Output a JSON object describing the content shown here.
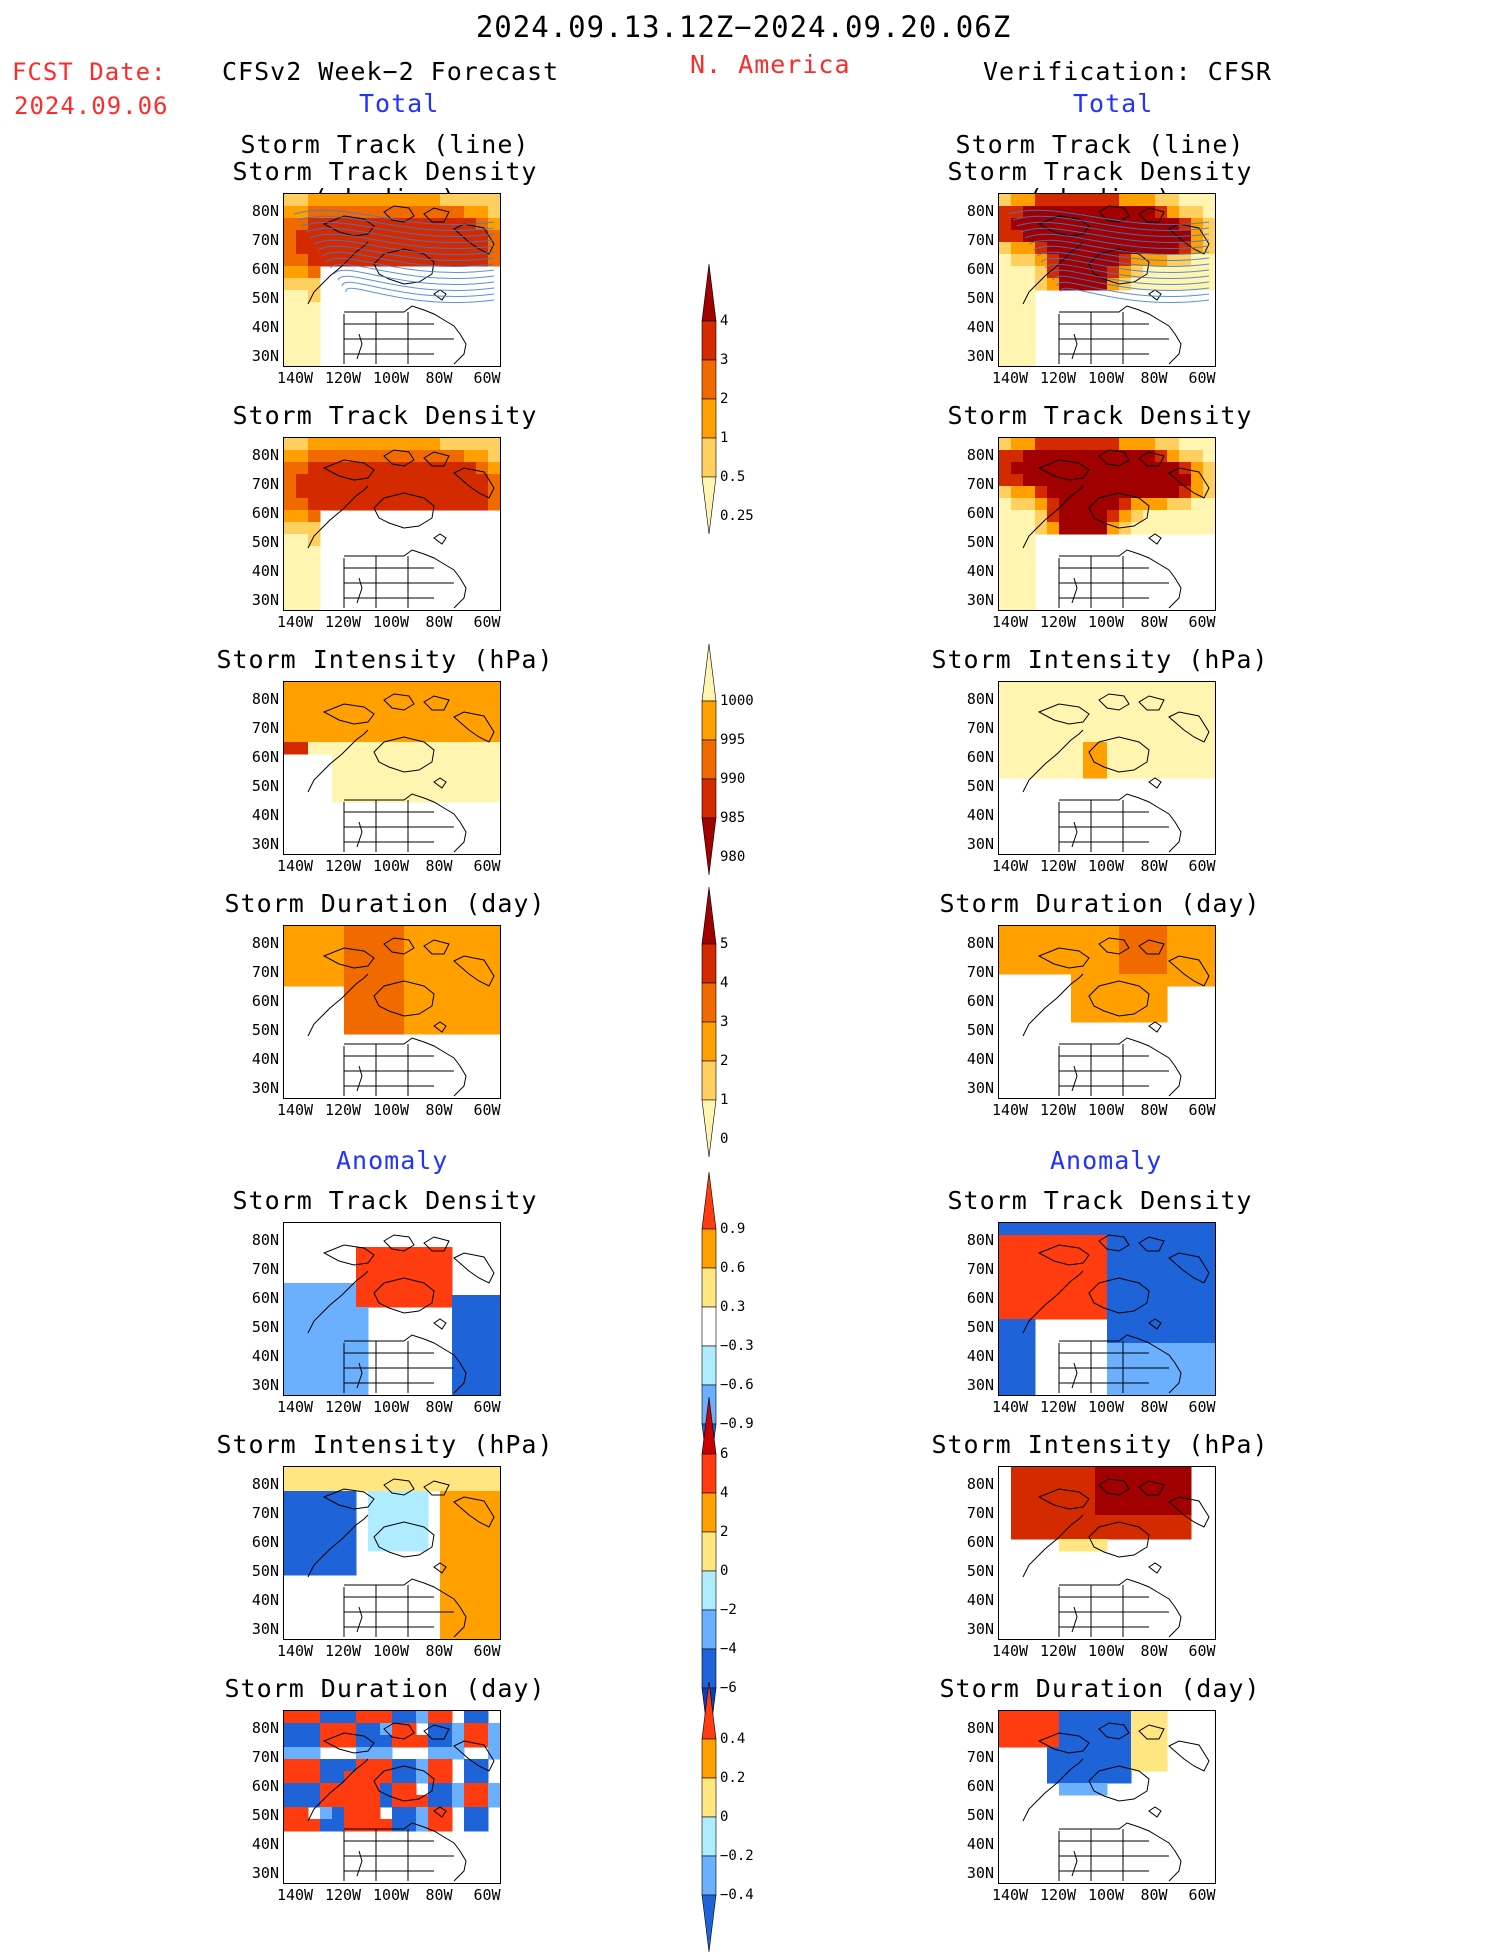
{
  "header": {
    "period": "2024.09.13.12Z−2024.09.20.06Z",
    "region": "N. America",
    "fcst_date_label": "FCST Date:",
    "fcst_date": "2024.09.06",
    "left_title": "CFSv2 Week−2 Forecast",
    "right_title": "Verification: CFSR",
    "total_left": "Total",
    "total_right": "Total",
    "anomaly_left": "Anomaly",
    "anomaly_right": "Anomaly"
  },
  "panel_titles": {
    "track_line": "Storm Track (line)",
    "track_density_shading": "Storm Track Density (shading)",
    "track_density": "Storm Track Density",
    "intensity": "Storm Intensity (hPa)",
    "duration": "Storm Duration (day)"
  },
  "axes": {
    "lat_labels": [
      "80N",
      "70N",
      "60N",
      "50N",
      "40N",
      "30N"
    ],
    "lon_labels": [
      "140W",
      "120W",
      "100W",
      "80W",
      "60W"
    ]
  },
  "colorbars": [
    {
      "name": "total-density",
      "labels": [
        "4",
        "3",
        "2",
        "1",
        "0.5",
        "0.25"
      ],
      "colors": [
        "#a00000",
        "#d42a00",
        "#f06a00",
        "#ffa000",
        "#ffd060",
        "#fff4b0"
      ],
      "direction": "top-high"
    },
    {
      "name": "total-intensity",
      "labels": [
        "1000",
        "995",
        "990",
        "985",
        "980"
      ],
      "colors": [
        "#fff4b0",
        "#ffa000",
        "#f06a00",
        "#d42a00",
        "#a00000"
      ],
      "direction": "top-low"
    },
    {
      "name": "total-duration",
      "labels": [
        "5",
        "4",
        "3",
        "2",
        "1",
        "0"
      ],
      "colors": [
        "#a00000",
        "#d42a00",
        "#f06a00",
        "#ffa000",
        "#ffd060",
        "#fff4b0"
      ],
      "direction": "top-high"
    },
    {
      "name": "anom-density",
      "labels": [
        "0.9",
        "0.6",
        "0.3",
        "−0.3",
        "−0.6",
        "−0.9"
      ],
      "colors": [
        "#ff3b10",
        "#ffa000",
        "#ffe680",
        "#ffffff",
        "#b0ecff",
        "#6ab0ff",
        "#1e64d8"
      ],
      "direction": "diverging"
    },
    {
      "name": "anom-intensity",
      "labels": [
        "6",
        "4",
        "2",
        "0",
        "−2",
        "−4",
        "−6"
      ],
      "colors": [
        "#c80000",
        "#ff3b10",
        "#ffa000",
        "#ffe680",
        "#b0ecff",
        "#6ab0ff",
        "#1e64d8",
        "#0a40c0"
      ],
      "direction": "diverging"
    },
    {
      "name": "anom-duration",
      "labels": [
        "0.4",
        "0.2",
        "0",
        "−0.2",
        "−0.4"
      ],
      "colors": [
        "#ff3b10",
        "#ffa000",
        "#ffe680",
        "#b0ecff",
        "#6ab0ff",
        "#1e64d8"
      ],
      "direction": "diverging"
    }
  ],
  "maps": [
    {
      "name": "fcst-track",
      "palette": [
        "#fff4b0",
        "#ffd060",
        "#ffa000",
        "#f06a00",
        "#d42a00"
      ],
      "field": "fcst_total",
      "tracks": true
    },
    {
      "name": "fcst-density",
      "palette": [
        "#fff4b0",
        "#ffd060",
        "#ffa000",
        "#f06a00",
        "#d42a00"
      ],
      "field": "fcst_total",
      "tracks": false
    },
    {
      "name": "fcst-intensity",
      "palette": [
        "#fff4b0",
        "#ffd060",
        "#ffa000",
        "#f06a00",
        "#d42a00"
      ],
      "field": "fcst_intensity",
      "tracks": false
    },
    {
      "name": "fcst-duration",
      "palette": [
        "#fff4b0",
        "#ffd060",
        "#ffa000",
        "#f06a00",
        "#d42a00"
      ],
      "field": "fcst_duration",
      "tracks": false
    },
    {
      "name": "fcst-anom-density",
      "palette": [
        "#1e64d8",
        "#6ab0ff",
        "#b0ecff",
        "#ffe680",
        "#ffa000",
        "#ff3b10"
      ],
      "field": "fcst_anom_density",
      "tracks": false
    },
    {
      "name": "fcst-anom-intensity",
      "palette": [
        "#1e64d8",
        "#6ab0ff",
        "#b0ecff",
        "#ffe680",
        "#ffa000",
        "#ff3b10"
      ],
      "field": "fcst_anom_intensity",
      "tracks": false
    },
    {
      "name": "fcst-anom-duration",
      "palette": [
        "#1e64d8",
        "#6ab0ff",
        "#b0ecff",
        "#ffe680",
        "#ffa000",
        "#ff3b10"
      ],
      "field": "fcst_anom_duration",
      "tracks": false
    },
    {
      "name": "verif-track",
      "palette": [
        "#fff4b0",
        "#ffd060",
        "#ffa000",
        "#d42a00",
        "#a00000"
      ],
      "field": "verif_total",
      "tracks": true
    },
    {
      "name": "verif-density",
      "palette": [
        "#fff4b0",
        "#ffd060",
        "#ffa000",
        "#d42a00",
        "#a00000"
      ],
      "field": "verif_total",
      "tracks": false
    },
    {
      "name": "verif-intensity",
      "palette": [
        "#fff4b0",
        "#ffd060",
        "#ffa000",
        "#f06a00",
        "#d42a00"
      ],
      "field": "verif_intensity",
      "tracks": false
    },
    {
      "name": "verif-duration",
      "palette": [
        "#fff4b0",
        "#ffd060",
        "#ffa000",
        "#f06a00",
        "#d42a00"
      ],
      "field": "verif_duration",
      "tracks": false
    },
    {
      "name": "verif-anom-density",
      "palette": [
        "#1e64d8",
        "#6ab0ff",
        "#b0ecff",
        "#ffe680",
        "#ffa000",
        "#ff3b10"
      ],
      "field": "verif_anom_density",
      "tracks": false
    },
    {
      "name": "verif-anom-intensity",
      "palette": [
        "#1e64d8",
        "#6ab0ff",
        "#b0ecff",
        "#ffe680",
        "#ffa000",
        "#d42a00",
        "#a00000"
      ],
      "field": "verif_anom_intensity",
      "tracks": false
    },
    {
      "name": "verif-anom-duration",
      "palette": [
        "#1e64d8",
        "#6ab0ff",
        "#b0ecff",
        "#ffe680",
        "#ffa000",
        "#ff3b10"
      ],
      "field": "verif_anom_duration",
      "tracks": false
    }
  ]
}
